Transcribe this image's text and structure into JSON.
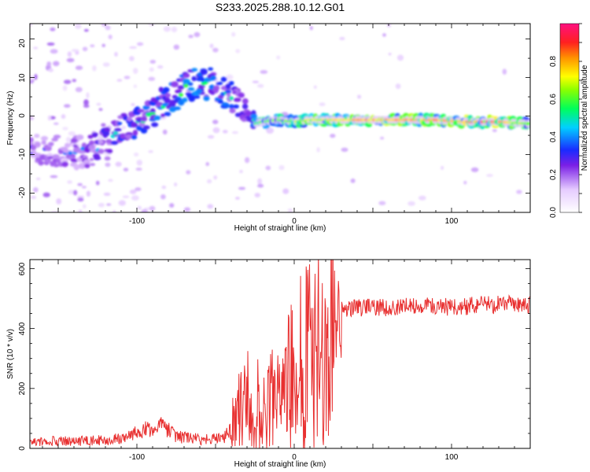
{
  "title": "S233.2025.288.10.12.G01",
  "chart_data": [
    {
      "type": "heatmap",
      "xlabel": "Height of straight line (km)",
      "ylabel": "Frequency (Hz)",
      "xlim": [
        -168,
        150
      ],
      "ylim": [
        -25,
        24
      ],
      "xticks": [
        "-100",
        "0",
        "100"
      ],
      "xtick_values": [
        -100,
        0,
        100
      ],
      "yticks": [
        "20",
        "10",
        "0",
        "-10",
        "-20"
      ],
      "ytick_values": [
        20,
        10,
        0,
        -10,
        -20
      ],
      "colorbar": {
        "label": "Normalized spectral amplitude",
        "ticks": [
          "0.0",
          "0.2",
          "0.4",
          "0.6",
          "0.8"
        ],
        "tick_values": [
          0.0,
          0.2,
          0.4,
          0.6,
          0.8
        ],
        "range": [
          0,
          1
        ]
      },
      "ridge": {
        "x": [
          -168,
          -150,
          -140,
          -130,
          -120,
          -110,
          -100,
          -90,
          -80,
          -70,
          -60,
          -50,
          -40,
          -30,
          -25,
          -20,
          -10,
          0,
          10,
          30,
          60,
          90,
          110,
          130,
          150
        ],
        "freq_hz": [
          -9,
          -9,
          -9.5,
          -9,
          -7,
          -4,
          -2,
          1,
          4,
          7,
          9,
          8,
          5,
          2,
          -2,
          -1.5,
          -1,
          -1.5,
          -1,
          -1,
          -1,
          -1,
          -1.5,
          -1.5,
          -2
        ],
        "amplitude": [
          0.22,
          0.25,
          0.3,
          0.3,
          0.35,
          0.4,
          0.4,
          0.45,
          0.45,
          0.5,
          0.45,
          0.45,
          0.4,
          0.35,
          0.55,
          0.6,
          0.6,
          0.65,
          0.7,
          0.75,
          0.8,
          0.8,
          0.85,
          0.85,
          0.6
        ]
      }
    },
    {
      "type": "line",
      "xlabel": "Height of straight line (km)",
      "ylabel": "SNR (10 * v/v)",
      "xlim": [
        -168,
        150
      ],
      "ylim": [
        0,
        630
      ],
      "xticks": [
        "-100",
        "0",
        "100"
      ],
      "xtick_values": [
        -100,
        0,
        100
      ],
      "yticks": [
        "0",
        "200",
        "400",
        "600"
      ],
      "ytick_values": [
        0,
        200,
        400,
        600
      ],
      "series": [
        {
          "name": "SNR",
          "color": "#e83030",
          "x": [
            -168,
            -150,
            -130,
            -115,
            -100,
            -90,
            -85,
            -80,
            -75,
            -60,
            -45,
            -40,
            -35,
            -30,
            -25,
            -20,
            -15,
            -12,
            -10,
            -5,
            0,
            10,
            20,
            30,
            40,
            60,
            80,
            100,
            120,
            140,
            150
          ],
          "y": [
            20,
            25,
            25,
            30,
            50,
            70,
            75,
            60,
            40,
            30,
            35,
            60,
            120,
            150,
            160,
            130,
            150,
            250,
            130,
            220,
            250,
            330,
            400,
            460,
            470,
            470,
            480,
            470,
            480,
            480,
            480
          ]
        }
      ]
    }
  ]
}
